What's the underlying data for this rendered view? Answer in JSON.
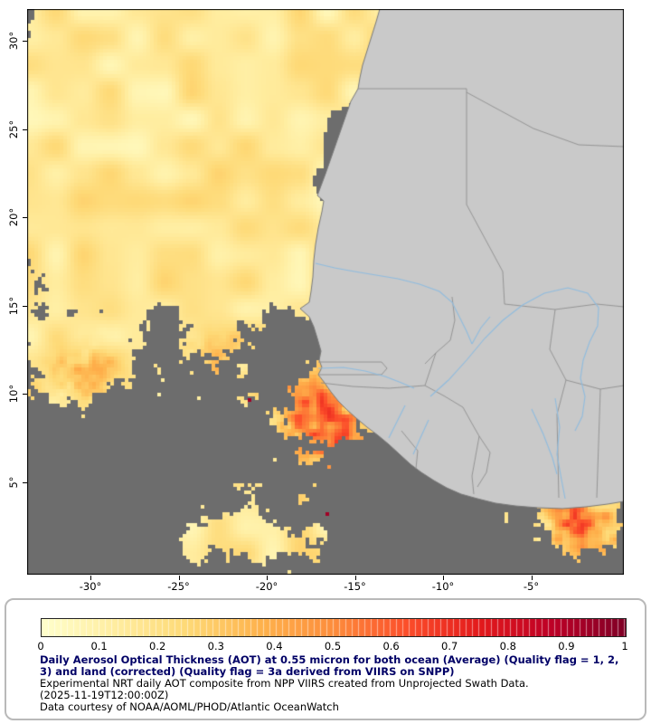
{
  "map": {
    "lat_ticks": [
      "30°",
      "25°",
      "20°",
      "15°",
      "10°",
      "5°"
    ],
    "lon_ticks": [
      "-30°",
      "-25°",
      "-20°",
      "-15°",
      "-10°",
      "-5°"
    ]
  },
  "colorbar": {
    "tick_labels": [
      "0",
      "0.1",
      "0.2",
      "0.3",
      "0.4",
      "0.5",
      "0.6",
      "0.7",
      "0.8",
      "0.9",
      "1"
    ],
    "range_min": 0,
    "range_max": 1,
    "colormap_stops": [
      "#ffffcc",
      "#ffeda0",
      "#fed976",
      "#feb24c",
      "#fd8d3c",
      "#fc4e2a",
      "#e31a1c",
      "#bd0026",
      "#800026"
    ]
  },
  "caption": {
    "title": "Daily Aerosol Optical Thickness (AOT) at 0.55 micron for both ocean (Average) (Quality flag = 1, 2, 3) and land (corrected) (Quality flag = 3a derived from VIIRS on SNPP)",
    "line2": "Experimental NRT daily AOT composite from NPP VIIRS created from Unprojected Swath Data.",
    "line3": "(2025-11-19T12:00:00Z)",
    "line4": "Data courtesy of NOAA/AOML/PHOD/Atlantic OceanWatch"
  },
  "colors": {
    "ocean_nodata": "#6d6d6d",
    "land": "#c9c9c9",
    "coastline": "#7a7a7a",
    "country_border": "#8f8f8f",
    "river": "#8fbcdf",
    "title_color": "#000066",
    "frame": "#000000"
  }
}
